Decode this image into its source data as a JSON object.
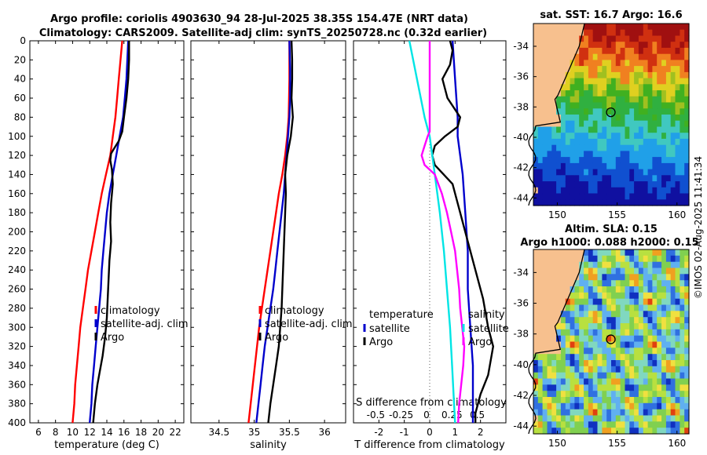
{
  "header": {
    "title_line1": "Argo profile: coriolis 4903630_94 28-Jul-2025 38.35S 154.47E (NRT data)",
    "title_line2": "Climatology: CARS2009. Satellite-adj clim: synTS_20250728.nc (0.32d earlier)"
  },
  "side_stamp": "©IMOS 02-Aug-2025 11:41:34",
  "colors": {
    "climatology": "#ff0000",
    "satellite": "#0000cc",
    "argo": "#000000",
    "salinity_diff": "#ff00ff",
    "temp_diff": "#00e5e5",
    "land": "#f7c08e"
  },
  "chart_data": [
    {
      "type": "line",
      "title": "",
      "xlabel": "temperature (deg C)",
      "ylabel": "",
      "xlim": [
        5,
        23
      ],
      "ylim": [
        400,
        0
      ],
      "xticks": [
        6,
        8,
        10,
        12,
        14,
        16,
        18,
        20,
        22
      ],
      "yticks": [
        0,
        20,
        40,
        60,
        80,
        100,
        120,
        140,
        160,
        180,
        200,
        220,
        240,
        260,
        280,
        300,
        320,
        340,
        360,
        380,
        400
      ],
      "legend": [
        "climatology",
        "satellite-adj. clim",
        "Argo"
      ],
      "series": [
        {
          "name": "climatology",
          "color": "climatology",
          "points": [
            [
              15.8,
              0
            ],
            [
              15.6,
              20
            ],
            [
              15.4,
              40
            ],
            [
              15.2,
              60
            ],
            [
              15.0,
              80
            ],
            [
              14.7,
              100
            ],
            [
              14.4,
              120
            ],
            [
              13.9,
              140
            ],
            [
              13.4,
              160
            ],
            [
              13.0,
              180
            ],
            [
              12.6,
              200
            ],
            [
              12.2,
              220
            ],
            [
              11.8,
              240
            ],
            [
              11.5,
              260
            ],
            [
              11.2,
              280
            ],
            [
              10.9,
              300
            ],
            [
              10.7,
              320
            ],
            [
              10.5,
              340
            ],
            [
              10.3,
              360
            ],
            [
              10.2,
              380
            ],
            [
              10.0,
              400
            ]
          ]
        },
        {
          "name": "satellite-adj. clim",
          "color": "satellite",
          "points": [
            [
              16.5,
              0
            ],
            [
              16.4,
              20
            ],
            [
              16.3,
              40
            ],
            [
              16.1,
              60
            ],
            [
              15.9,
              80
            ],
            [
              15.5,
              100
            ],
            [
              15.1,
              120
            ],
            [
              14.7,
              140
            ],
            [
              14.3,
              160
            ],
            [
              14.0,
              180
            ],
            [
              13.8,
              200
            ],
            [
              13.6,
              220
            ],
            [
              13.4,
              240
            ],
            [
              13.3,
              260
            ],
            [
              13.1,
              280
            ],
            [
              12.9,
              300
            ],
            [
              12.7,
              320
            ],
            [
              12.5,
              340
            ],
            [
              12.3,
              360
            ],
            [
              12.2,
              380
            ],
            [
              12.0,
              400
            ]
          ]
        },
        {
          "name": "Argo",
          "color": "argo",
          "points": [
            [
              16.6,
              0
            ],
            [
              16.6,
              20
            ],
            [
              16.5,
              40
            ],
            [
              16.3,
              60
            ],
            [
              16.0,
              80
            ],
            [
              15.8,
              95
            ],
            [
              15.4,
              105
            ],
            [
              14.9,
              112
            ],
            [
              14.5,
              118
            ],
            [
              14.4,
              125
            ],
            [
              14.6,
              135
            ],
            [
              14.7,
              150
            ],
            [
              14.5,
              170
            ],
            [
              14.4,
              190
            ],
            [
              14.5,
              210
            ],
            [
              14.3,
              230
            ],
            [
              14.2,
              250
            ],
            [
              14.1,
              270
            ],
            [
              14.0,
              290
            ],
            [
              13.8,
              310
            ],
            [
              13.5,
              330
            ],
            [
              13.2,
              345
            ],
            [
              12.9,
              360
            ],
            [
              12.6,
              380
            ],
            [
              12.4,
              400
            ]
          ]
        }
      ]
    },
    {
      "type": "line",
      "title": "",
      "xlabel": "salinity",
      "ylabel": "",
      "xlim": [
        34.1,
        36.3
      ],
      "ylim": [
        400,
        0
      ],
      "xticks": [
        34.5,
        35,
        35.5,
        36
      ],
      "xtick_labels": [
        "34.5",
        "35",
        "35.5",
        "36"
      ],
      "legend": [
        "climatology",
        "satellite-adj. clim",
        "Argo"
      ],
      "series": [
        {
          "name": "climatology",
          "color": "climatology",
          "points": [
            [
              35.5,
              0
            ],
            [
              35.5,
              40
            ],
            [
              35.49,
              80
            ],
            [
              35.47,
              100
            ],
            [
              35.44,
              120
            ],
            [
              35.4,
              140
            ],
            [
              35.35,
              160
            ],
            [
              35.31,
              180
            ],
            [
              35.27,
              200
            ],
            [
              35.23,
              220
            ],
            [
              35.19,
              240
            ],
            [
              35.15,
              260
            ],
            [
              35.11,
              280
            ],
            [
              35.07,
              300
            ],
            [
              35.04,
              320
            ],
            [
              35.01,
              340
            ],
            [
              34.98,
              360
            ],
            [
              34.95,
              380
            ],
            [
              34.92,
              400
            ]
          ]
        },
        {
          "name": "satellite-adj. clim",
          "color": "satellite",
          "points": [
            [
              35.5,
              0
            ],
            [
              35.51,
              30
            ],
            [
              35.51,
              60
            ],
            [
              35.5,
              80
            ],
            [
              35.48,
              100
            ],
            [
              35.46,
              120
            ],
            [
              35.44,
              140
            ],
            [
              35.42,
              160
            ],
            [
              35.39,
              180
            ],
            [
              35.36,
              200
            ],
            [
              35.33,
              220
            ],
            [
              35.3,
              240
            ],
            [
              35.27,
              260
            ],
            [
              35.23,
              280
            ],
            [
              35.19,
              300
            ],
            [
              35.15,
              320
            ],
            [
              35.12,
              340
            ],
            [
              35.09,
              360
            ],
            [
              35.06,
              380
            ],
            [
              35.03,
              400
            ]
          ]
        },
        {
          "name": "Argo",
          "color": "argo",
          "points": [
            [
              35.53,
              0
            ],
            [
              35.54,
              20
            ],
            [
              35.54,
              40
            ],
            [
              35.53,
              60
            ],
            [
              35.55,
              80
            ],
            [
              35.52,
              100
            ],
            [
              35.47,
              120
            ],
            [
              35.44,
              140
            ],
            [
              35.45,
              160
            ],
            [
              35.44,
              180
            ],
            [
              35.43,
              200
            ],
            [
              35.42,
              220
            ],
            [
              35.41,
              240
            ],
            [
              35.4,
              260
            ],
            [
              35.39,
              280
            ],
            [
              35.37,
              300
            ],
            [
              35.35,
              320
            ],
            [
              35.31,
              340
            ],
            [
              35.27,
              360
            ],
            [
              35.23,
              380
            ],
            [
              35.2,
              400
            ]
          ]
        }
      ]
    },
    {
      "type": "line",
      "title": "",
      "xlabel": "T difference from climatology",
      "xlabel_top": "S difference from climatology",
      "ylabel": "",
      "xlim": [
        -3,
        3
      ],
      "ylim": [
        400,
        0
      ],
      "xticks": [
        -2,
        -1,
        0,
        1,
        2
      ],
      "xtick_labels": [
        "-2",
        "-1",
        "0",
        "1",
        "2"
      ],
      "s_xticks": [
        -0.5,
        -0.25,
        0,
        0.25,
        0.5
      ],
      "s_xtick_labels": [
        "-0.5",
        "-0.25",
        "0",
        "0.25",
        "0.5"
      ],
      "legend_temperature": {
        "title": "temperature",
        "items": [
          "satellite",
          "Argo"
        ]
      },
      "legend_salinity": {
        "title": "salinity",
        "items": [
          "satellite",
          "Argo"
        ]
      },
      "series": [
        {
          "name": "temperature satellite",
          "color": "satellite",
          "points": [
            [
              0.9,
              0
            ],
            [
              1.0,
              40
            ],
            [
              1.1,
              80
            ],
            [
              1.1,
              100
            ],
            [
              1.2,
              120
            ],
            [
              1.3,
              140
            ],
            [
              1.4,
              180
            ],
            [
              1.5,
              220
            ],
            [
              1.5,
              260
            ],
            [
              1.6,
              300
            ],
            [
              1.7,
              340
            ],
            [
              1.7,
              380
            ],
            [
              1.7,
              400
            ]
          ]
        },
        {
          "name": "temperature Argo",
          "color": "argo",
          "points": [
            [
              0.8,
              0
            ],
            [
              0.9,
              10
            ],
            [
              0.8,
              25
            ],
            [
              0.5,
              40
            ],
            [
              0.7,
              60
            ],
            [
              1.2,
              80
            ],
            [
              1.1,
              90
            ],
            [
              0.6,
              100
            ],
            [
              0.2,
              110
            ],
            [
              0.1,
              120
            ],
            [
              0.2,
              130
            ],
            [
              0.9,
              150
            ],
            [
              1.2,
              180
            ],
            [
              1.6,
              220
            ],
            [
              2.1,
              270
            ],
            [
              2.3,
              300
            ],
            [
              2.5,
              320
            ],
            [
              2.3,
              350
            ],
            [
              2.0,
              370
            ],
            [
              1.8,
              390
            ],
            [
              1.8,
              400
            ]
          ]
        },
        {
          "name": "salinity satellite",
          "color": "temp_diff",
          "points": [
            [
              -0.2,
              0
            ],
            [
              -0.05,
              80
            ],
            [
              0,
              100
            ],
            [
              0.05,
              140
            ],
            [
              0.1,
              180
            ],
            [
              0.14,
              220
            ],
            [
              0.17,
              260
            ],
            [
              0.2,
              300
            ],
            [
              0.22,
              340
            ],
            [
              0.24,
              380
            ],
            [
              0.25,
              400
            ]
          ]
        },
        {
          "name": "salinity Argo",
          "color": "salinity_diff",
          "points": [
            [
              0.0,
              0
            ],
            [
              0.0,
              40
            ],
            [
              0.0,
              80
            ],
            [
              0.0,
              95
            ],
            [
              -0.02,
              100
            ],
            [
              -0.05,
              110
            ],
            [
              -0.08,
              120
            ],
            [
              -0.05,
              130
            ],
            [
              0.05,
              140
            ],
            [
              0.12,
              160
            ],
            [
              0.17,
              180
            ],
            [
              0.21,
              200
            ],
            [
              0.25,
              220
            ],
            [
              0.27,
              240
            ],
            [
              0.29,
              260
            ],
            [
              0.3,
              280
            ],
            [
              0.32,
              300
            ],
            [
              0.34,
              320
            ],
            [
              0.33,
              340
            ],
            [
              0.31,
              360
            ],
            [
              0.29,
              380
            ],
            [
              0.28,
              400
            ]
          ]
        }
      ]
    },
    {
      "type": "heatmap",
      "title": "sat. SST: 16.7 Argo: 16.6",
      "xlim": [
        148,
        161
      ],
      "ylim": [
        -44.5,
        -32.5
      ],
      "xticks": [
        150,
        155,
        160
      ],
      "yticks": [
        -34,
        -36,
        -38,
        -40,
        -42,
        -44
      ],
      "argo_position": [
        154.47,
        -38.35
      ]
    },
    {
      "type": "heatmap",
      "title_line1": "Altim. SLA: 0.15",
      "title_line2": "Argo h1000: 0.088 h2000: 0.15",
      "xlim": [
        148,
        161
      ],
      "ylim": [
        -44.5,
        -32.5
      ],
      "xticks": [
        150,
        155,
        160
      ],
      "yticks": [
        -34,
        -36,
        -38,
        -40,
        -42,
        -44
      ],
      "argo_position": [
        154.47,
        -38.35
      ]
    }
  ]
}
